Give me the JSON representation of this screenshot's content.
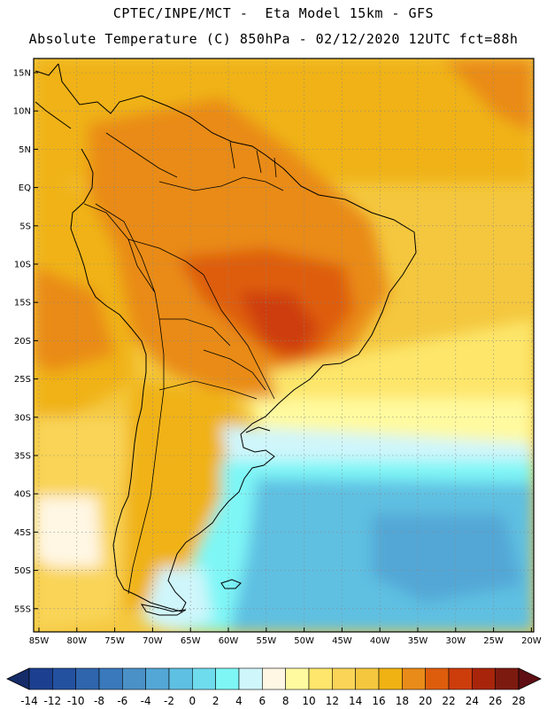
{
  "header": {
    "line1": "CPTEC/INPE/MCT -  Eta Model 15km - GFS",
    "line2": "Absolute Temperature (C) 850hPa - 02/12/2020 12UTC fct=88h"
  },
  "axes": {
    "lat_labels": [
      "15N",
      "10N",
      "5N",
      "EQ",
      "5S",
      "10S",
      "15S",
      "20S",
      "25S",
      "30S",
      "35S",
      "40S",
      "45S",
      "50S",
      "55S"
    ],
    "lon_labels": [
      "85W",
      "80W",
      "75W",
      "70W",
      "65W",
      "60W",
      "55W",
      "50W",
      "45W",
      "40W",
      "35W",
      "30W",
      "25W",
      "20W"
    ]
  },
  "colorbar": {
    "levels": [
      "-14",
      "-12",
      "-10",
      "-8",
      "-6",
      "-4",
      "-2",
      "0",
      "2",
      "4",
      "6",
      "8",
      "10",
      "12",
      "14",
      "16",
      "18",
      "20",
      "22",
      "24",
      "26",
      "28"
    ],
    "colors": [
      "#1c3f8f",
      "#24519f",
      "#2e65ad",
      "#3a79bb",
      "#4a91c8",
      "#53a7d6",
      "#5ec0e2",
      "#6fdcee",
      "#7ef6f6",
      "#cff6fb",
      "#fff7e4",
      "#fffa9f",
      "#fde66b",
      "#f9d457",
      "#f4c73e",
      "#f0b213",
      "#e98b19",
      "#de5d0c",
      "#cd3d0c",
      "#a8250b",
      "#7d1a10"
    ],
    "under_color": "#152c69",
    "over_color": "#5f0f14"
  },
  "colors": {
    "frame": "#000000",
    "grid": "#888888",
    "coast": "#000000"
  }
}
